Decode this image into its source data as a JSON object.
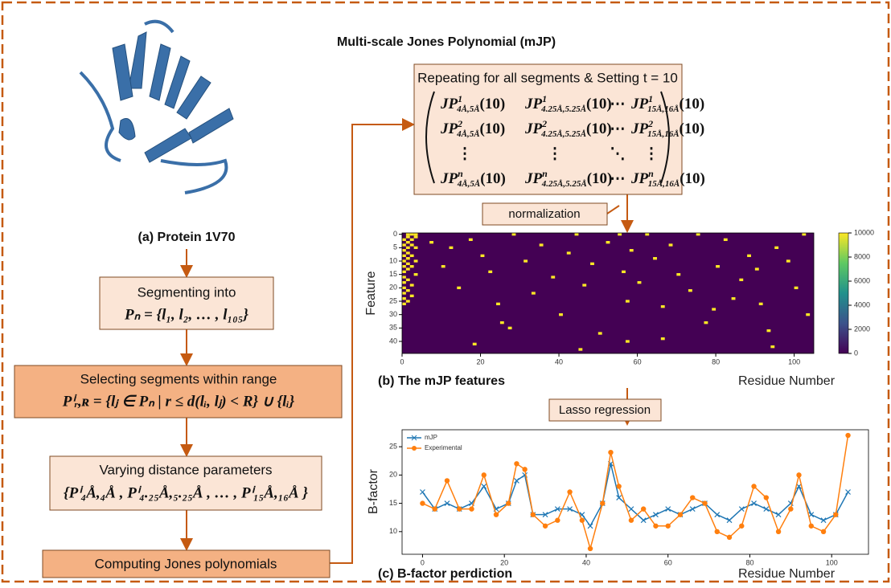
{
  "title": "Multi-scale Jones Polynomial (mJP)",
  "protein": {
    "caption": "(a) Protein 1V70"
  },
  "steps": [
    {
      "label": "Segmenting into",
      "formula": "Pₙ = {l₁, l₂, … , l₁₀₅}"
    },
    {
      "label": "Selecting segments within range",
      "formula": "Pⁱᵣ,ʀ = {lⱼ ∈ Pₙ | r ≤ d(lᵢ, lⱼ) < R} ∪ {lᵢ}"
    },
    {
      "label": "Varying distance parameters",
      "formula": "{Pⁱ₄Å,₄Å , Pⁱ₄.₂₅Å,₅.₂₅Å , … , Pⁱ₁₅Å,₁₆Å }"
    },
    {
      "label": "Computing Jones polynomials"
    }
  ],
  "matrix": {
    "title": "Repeating for all segments & Setting t = 10",
    "fn": "JP",
    "arg": "(10)",
    "rows": [
      [
        {
          "sup": "1",
          "sub": "4Å,5Å"
        },
        {
          "sup": "1",
          "sub": "4.25Å,5.25Å"
        },
        "⋯",
        {
          "sup": "1",
          "sub": "15Å,16Å"
        }
      ],
      [
        {
          "sup": "2",
          "sub": "4Å,5Å"
        },
        {
          "sup": "2",
          "sub": "4.25Å,5.25Å"
        },
        "⋯",
        {
          "sup": "2",
          "sub": "15Å,16Å"
        }
      ],
      [
        "⋮",
        "⋮",
        "⋱",
        "⋮"
      ],
      [
        {
          "sup": "n",
          "sub": "4Å,5Å"
        },
        {
          "sup": "n",
          "sub": "4.25Å,5.25Å"
        },
        "⋯",
        {
          "sup": "n",
          "sub": "15Å,16Å"
        }
      ]
    ]
  },
  "callouts": {
    "normalization": "normalization",
    "lasso": "Lasso regression"
  },
  "heatmap": {
    "type": "heatmap",
    "caption": "(b) The mJP features",
    "x_label": "Residue Number",
    "y_label": "Feature",
    "xlim": [
      0,
      105
    ],
    "ylim": [
      0,
      45
    ],
    "xticks": [
      0,
      20,
      40,
      60,
      80,
      100
    ],
    "yticks": [
      0,
      5,
      10,
      15,
      20,
      25,
      30,
      35,
      40
    ],
    "low_color": "#440154",
    "colorbar": {
      "lim": [
        0,
        10000
      ],
      "ticks": [
        0,
        2000,
        4000,
        6000,
        8000,
        10000
      ],
      "colors": [
        "#440154",
        "#3b528b",
        "#21918c",
        "#5ec962",
        "#fde725"
      ]
    },
    "cells": [
      [
        0,
        2,
        10000
      ],
      [
        0,
        4,
        10000
      ],
      [
        0,
        6,
        10000
      ],
      [
        0,
        8,
        10000
      ],
      [
        0,
        10,
        10000
      ],
      [
        0,
        12,
        10000
      ],
      [
        0,
        14,
        10000
      ],
      [
        0,
        16,
        10000
      ],
      [
        0,
        18,
        10000
      ],
      [
        0,
        20,
        10000
      ],
      [
        0,
        22,
        10000
      ],
      [
        0,
        24,
        10000
      ],
      [
        0,
        26,
        10000
      ],
      [
        1,
        0,
        10000
      ],
      [
        1,
        1,
        10000
      ],
      [
        1,
        3,
        10000
      ],
      [
        1,
        5,
        10000
      ],
      [
        1,
        7,
        10000
      ],
      [
        1,
        9,
        10000
      ],
      [
        1,
        11,
        10000
      ],
      [
        1,
        13,
        10000
      ],
      [
        1,
        17,
        10000
      ],
      [
        1,
        21,
        10000
      ],
      [
        1,
        25,
        10000
      ],
      [
        2,
        0,
        10000
      ],
      [
        2,
        2,
        10000
      ],
      [
        2,
        4,
        10000
      ],
      [
        2,
        8,
        10000
      ],
      [
        2,
        12,
        10000
      ],
      [
        2,
        19,
        10000
      ],
      [
        2,
        23,
        10000
      ],
      [
        3,
        0,
        10000
      ],
      [
        3,
        1,
        10000
      ],
      [
        3,
        5,
        10000
      ],
      [
        3,
        10,
        10000
      ],
      [
        3,
        15,
        10000
      ],
      [
        7,
        3,
        10000
      ],
      [
        10,
        12,
        10000
      ],
      [
        12,
        5,
        10000
      ],
      [
        14,
        20,
        10000
      ],
      [
        17,
        2,
        10000
      ],
      [
        20,
        8,
        10000
      ],
      [
        22,
        14,
        10000
      ],
      [
        24,
        26,
        10000
      ],
      [
        25,
        33,
        10000
      ],
      [
        28,
        0,
        10000
      ],
      [
        31,
        10,
        10000
      ],
      [
        33,
        22,
        10000
      ],
      [
        35,
        4,
        10000
      ],
      [
        38,
        16,
        10000
      ],
      [
        40,
        30,
        10000
      ],
      [
        42,
        7,
        10000
      ],
      [
        44,
        0,
        10000
      ],
      [
        46,
        19,
        10000
      ],
      [
        48,
        11,
        10000
      ],
      [
        50,
        37,
        10000
      ],
      [
        52,
        3,
        10000
      ],
      [
        55,
        0,
        10000
      ],
      [
        56,
        14,
        10000
      ],
      [
        57,
        25,
        10000
      ],
      [
        57,
        40,
        10000
      ],
      [
        58,
        6,
        10000
      ],
      [
        60,
        18,
        10000
      ],
      [
        62,
        0,
        10000
      ],
      [
        64,
        9,
        10000
      ],
      [
        66,
        27,
        10000
      ],
      [
        68,
        4,
        10000
      ],
      [
        70,
        15,
        10000
      ],
      [
        73,
        21,
        10000
      ],
      [
        75,
        0,
        10000
      ],
      [
        77,
        33,
        10000
      ],
      [
        80,
        12,
        10000
      ],
      [
        82,
        2,
        10000
      ],
      [
        84,
        24,
        10000
      ],
      [
        86,
        17,
        10000
      ],
      [
        88,
        8,
        10000
      ],
      [
        90,
        13,
        10000
      ],
      [
        91,
        26,
        10000
      ],
      [
        93,
        36,
        10000
      ],
      [
        95,
        5,
        10000
      ],
      [
        98,
        10,
        10000
      ],
      [
        100,
        20,
        10000
      ],
      [
        102,
        0,
        10000
      ],
      [
        103,
        30,
        10000
      ],
      [
        18,
        41,
        10000
      ],
      [
        27,
        35,
        10000
      ],
      [
        45,
        43,
        10000
      ],
      [
        66,
        39,
        10000
      ],
      [
        79,
        28,
        10000
      ],
      [
        94,
        42,
        10000
      ]
    ]
  },
  "bfactor": {
    "type": "line",
    "caption": "(c) B-factor perdiction",
    "x_label": "Residue Number",
    "y_label": "B-factor",
    "xlim": [
      -5,
      109
    ],
    "ylim": [
      6,
      28
    ],
    "xticks": [
      0,
      20,
      40,
      60,
      80,
      100
    ],
    "yticks": [
      10,
      15,
      20,
      25
    ],
    "x": [
      0,
      3,
      6,
      9,
      12,
      15,
      18,
      21,
      23,
      25,
      27,
      30,
      33,
      36,
      39,
      41,
      44,
      46,
      48,
      51,
      54,
      57,
      60,
      63,
      66,
      69,
      72,
      75,
      78,
      81,
      84,
      87,
      90,
      92,
      95,
      98,
      101,
      104
    ],
    "series": [
      {
        "name": "mJP",
        "color": "#1f77b4",
        "marker": "x",
        "values": [
          17,
          14,
          15,
          14,
          15,
          18,
          14,
          15,
          19,
          20,
          13,
          13,
          14,
          14,
          13,
          11,
          15,
          22,
          16,
          14,
          12,
          13,
          14,
          13,
          14,
          15,
          13,
          12,
          14,
          15,
          14,
          13,
          15,
          18,
          13,
          12,
          13,
          17
        ]
      },
      {
        "name": "Experimental",
        "color": "#ff7f0e",
        "marker": "o",
        "values": [
          15,
          14,
          19,
          14,
          14,
          20,
          13,
          15,
          22,
          21,
          13,
          11,
          12,
          17,
          12,
          7,
          15,
          24,
          18,
          12,
          14,
          11,
          11,
          13,
          16,
          15,
          10,
          9,
          11,
          18,
          16,
          10,
          14,
          20,
          11,
          10,
          13,
          27
        ]
      }
    ]
  }
}
